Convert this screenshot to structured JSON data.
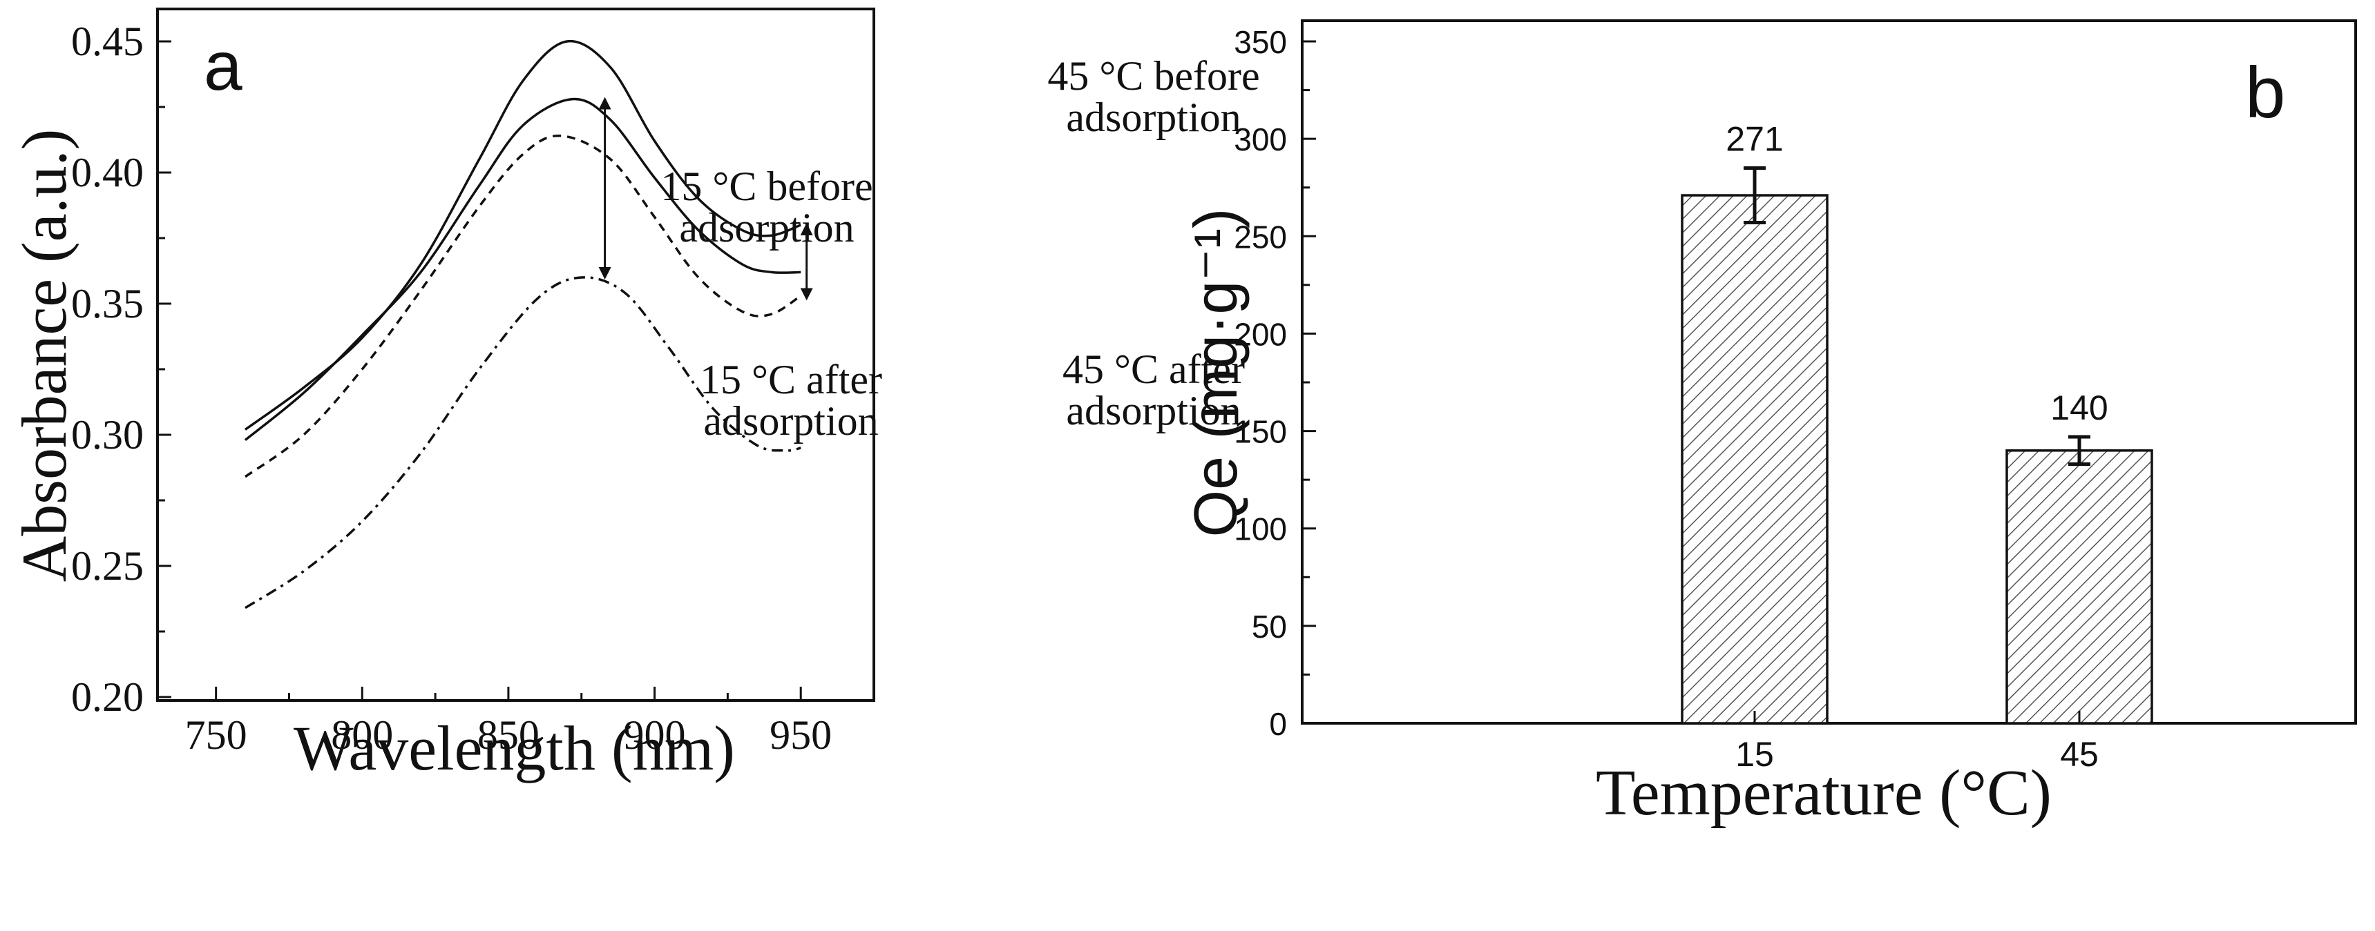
{
  "chart_data": [
    {
      "type": "line",
      "panel_label": "a",
      "xlabel": "Wavelength (nm)",
      "ylabel": "Absorbance (a.u.)",
      "xlim": [
        730,
        975
      ],
      "ylim": [
        0.2,
        0.47
      ],
      "xticks": [
        750,
        800,
        850,
        900,
        950
      ],
      "yticks": [
        0.2,
        0.25,
        0.3,
        0.35,
        0.4,
        0.45
      ],
      "xtick_labels": [
        "750",
        "800",
        "850",
        "900",
        "950"
      ],
      "ytick_labels": [
        "0.20",
        "0.25",
        "0.30",
        "0.35",
        "0.40",
        "0.45"
      ],
      "series": [
        {
          "name": "45 °C before adsorption",
          "style": "solid",
          "x": [
            760,
            780,
            800,
            820,
            840,
            855,
            870,
            885,
            900,
            915,
            930,
            940,
            950
          ],
          "y": [
            0.302,
            0.318,
            0.337,
            0.365,
            0.405,
            0.435,
            0.45,
            0.44,
            0.412,
            0.39,
            0.378,
            0.376,
            0.38
          ]
        },
        {
          "name": "45 °C after adsorption",
          "style": "solid",
          "x": [
            760,
            780,
            800,
            820,
            840,
            855,
            872,
            885,
            900,
            915,
            930,
            940,
            950
          ],
          "y": [
            0.298,
            0.316,
            0.338,
            0.362,
            0.395,
            0.418,
            0.428,
            0.42,
            0.398,
            0.378,
            0.365,
            0.362,
            0.362
          ]
        },
        {
          "name": "15 °C before adsorption",
          "style": "dashed",
          "x": [
            760,
            780,
            800,
            820,
            840,
            855,
            868,
            885,
            900,
            915,
            930,
            940,
            950
          ],
          "y": [
            0.284,
            0.3,
            0.325,
            0.355,
            0.387,
            0.407,
            0.414,
            0.405,
            0.383,
            0.36,
            0.347,
            0.346,
            0.353
          ]
        },
        {
          "name": "15 °C after adsorption",
          "style": "dashdot",
          "x": [
            760,
            780,
            800,
            820,
            840,
            860,
            875,
            890,
            905,
            920,
            935,
            945,
            950
          ],
          "y": [
            0.234,
            0.248,
            0.267,
            0.293,
            0.325,
            0.352,
            0.36,
            0.354,
            0.333,
            0.31,
            0.296,
            0.294,
            0.295
          ]
        }
      ],
      "annotations": [
        {
          "text_line1": "45 °C before",
          "text_line2": "adsorption"
        },
        {
          "text_line1": "15 °C before",
          "text_line2": "adsorption"
        },
        {
          "text_line1": "45 °C after",
          "text_line2": "adsorption"
        },
        {
          "text_line1": "15 °C after",
          "text_line2": "adsorption"
        }
      ],
      "arrows": [
        {
          "x": 883,
          "y_top": 0.428,
          "y_bottom": 0.36
        },
        {
          "x": 952,
          "y_top": 0.38,
          "y_bottom": 0.352
        }
      ]
    },
    {
      "type": "bar",
      "panel_label": "b",
      "xlabel": "Temperature (°C)",
      "ylabel": "Qe (mg·g⁻¹)",
      "categories": [
        "15",
        "45"
      ],
      "values": [
        271,
        140
      ],
      "error": [
        14,
        7
      ],
      "value_labels": [
        "271",
        "140"
      ],
      "ylim": [
        0,
        350
      ],
      "yticks": [
        0,
        50,
        100,
        150,
        200,
        250,
        300,
        350
      ],
      "ytick_labels": [
        "0",
        "50",
        "100",
        "150",
        "200",
        "250",
        "300",
        "350"
      ]
    }
  ]
}
